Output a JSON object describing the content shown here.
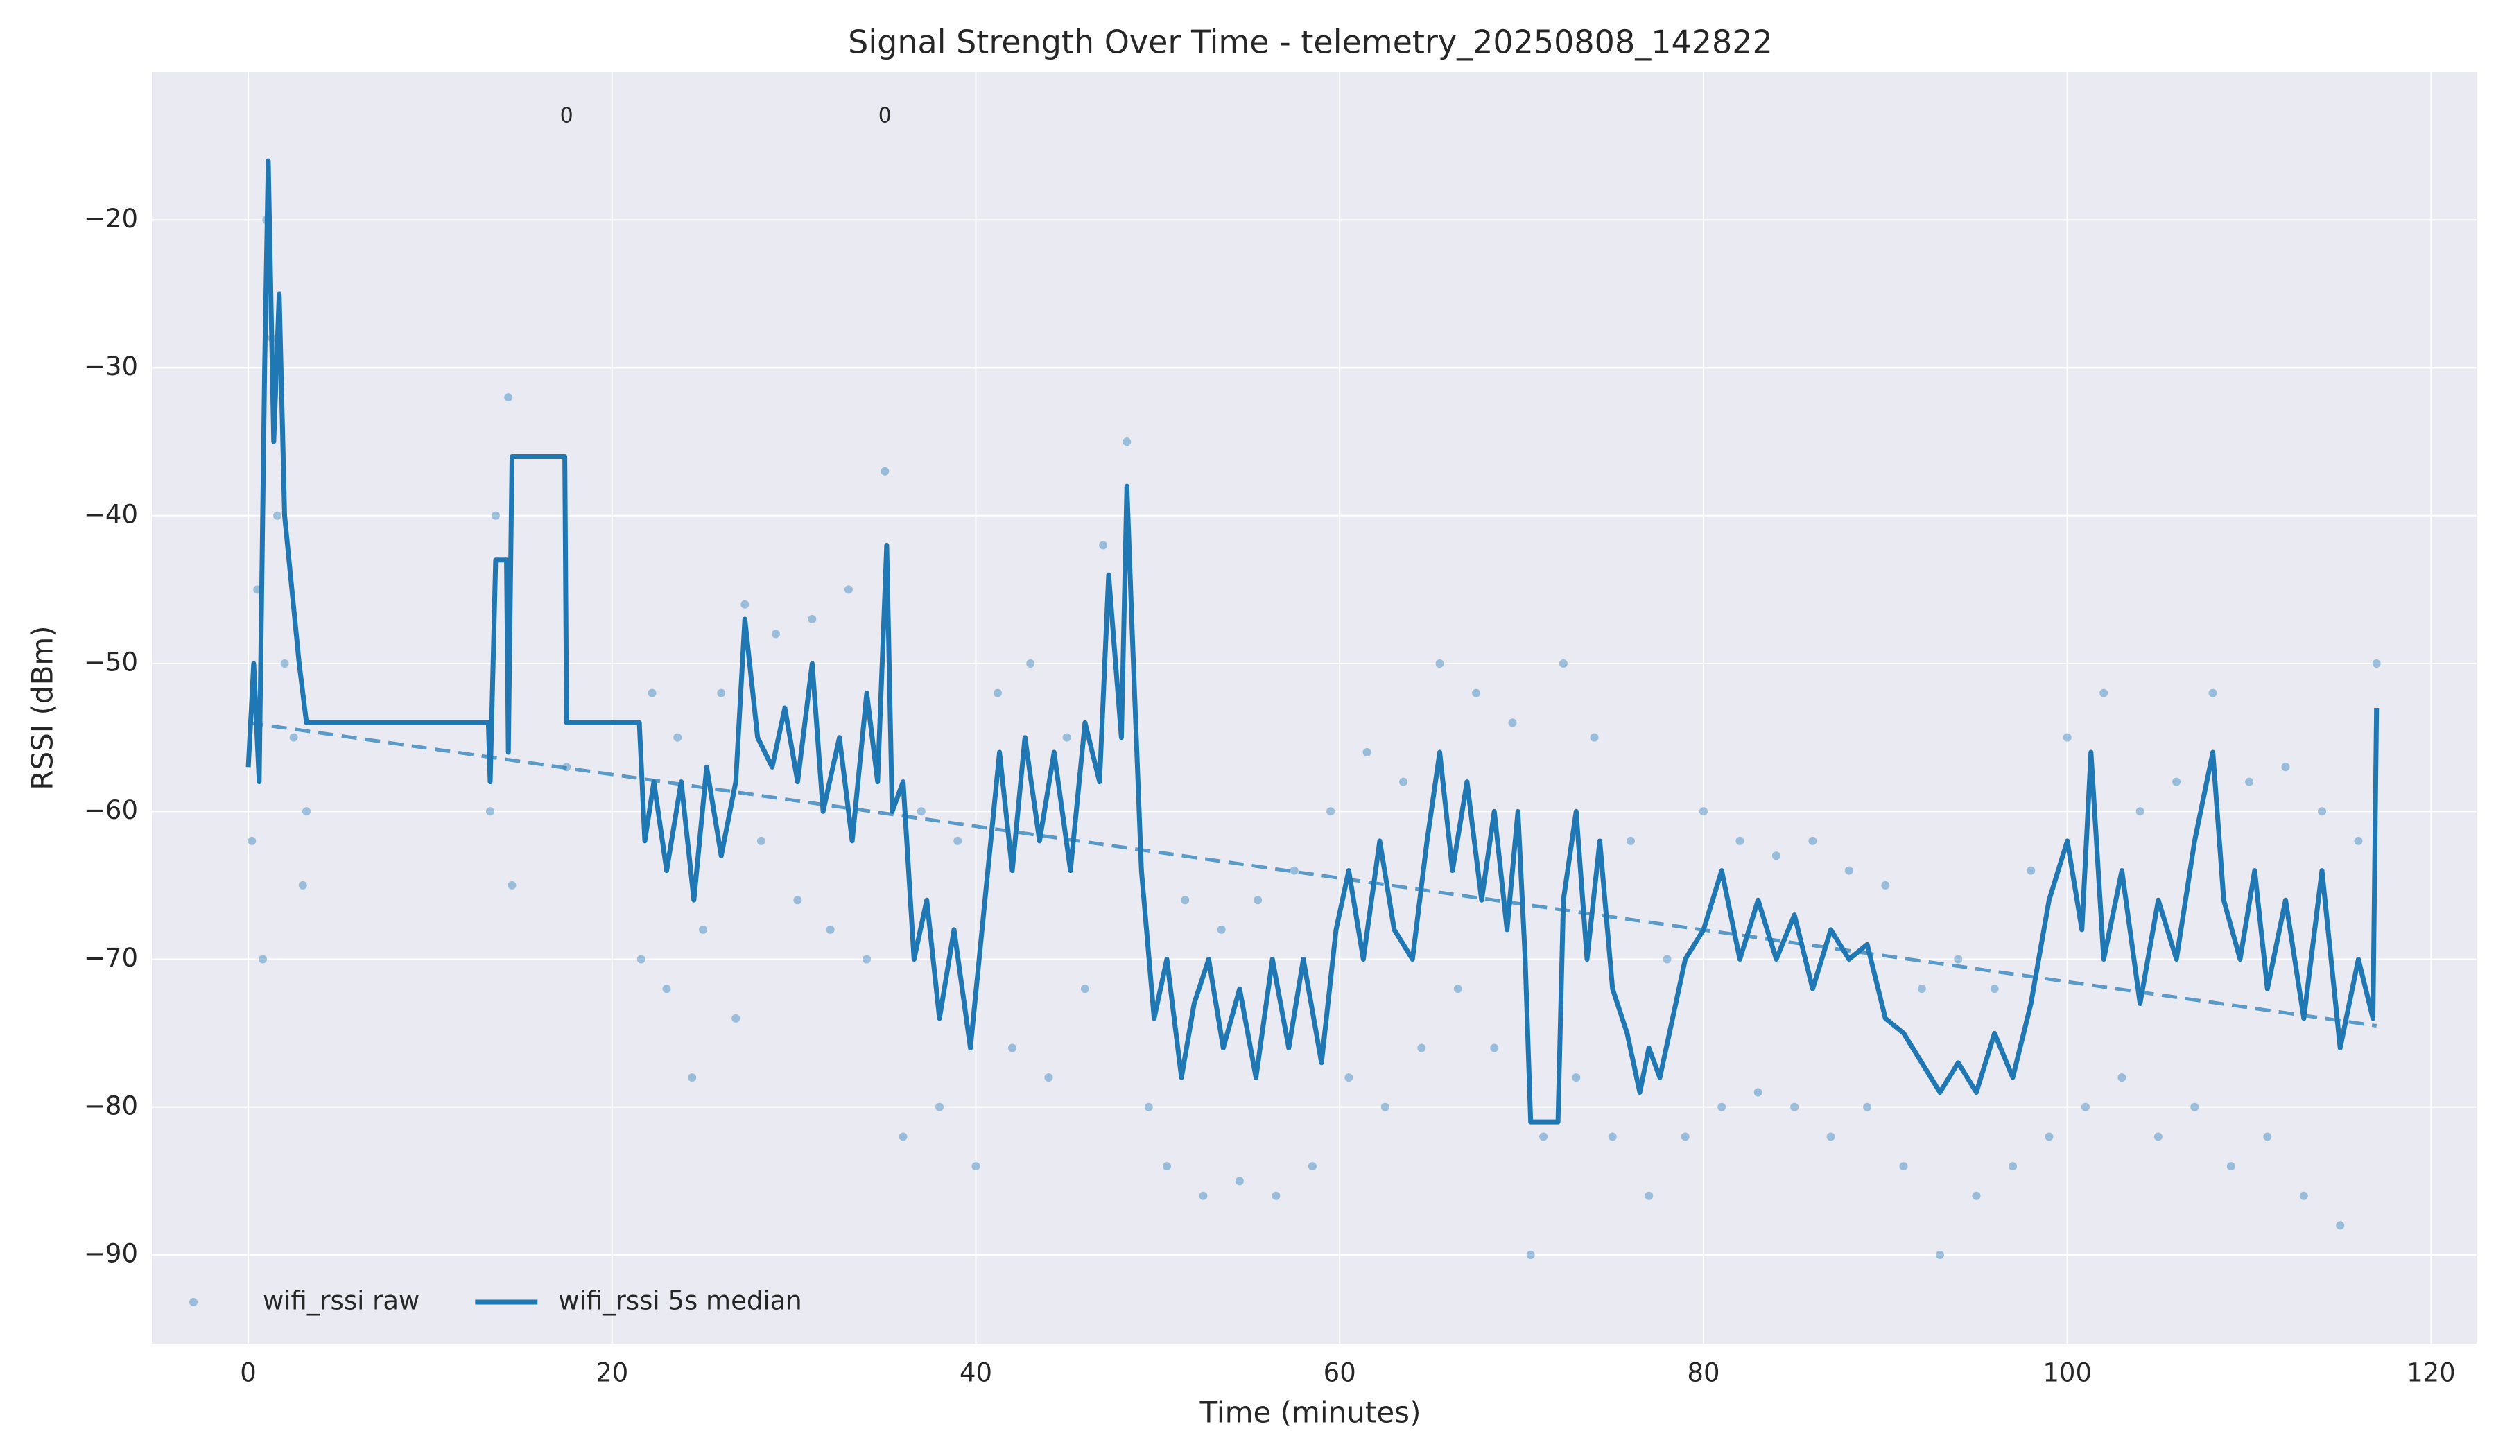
{
  "chart_data": {
    "type": "scatter-line",
    "title": "Signal Strength Over Time - telemetry_20250808_142822",
    "x_label": "Time (minutes)",
    "y_label": "RSSI (dBm)",
    "xlim": [
      -5.3,
      122.5
    ],
    "ylim": [
      -96,
      -10
    ],
    "xticks": [
      0,
      20,
      40,
      60,
      80,
      100,
      120
    ],
    "yticks": [
      {
        "value": -90,
        "label": "−90"
      },
      {
        "value": -80,
        "label": "−80"
      },
      {
        "value": -70,
        "label": "−70"
      },
      {
        "value": -60,
        "label": "−60"
      },
      {
        "value": -50,
        "label": "−50"
      },
      {
        "value": -40,
        "label": "−40"
      },
      {
        "value": -30,
        "label": "−30"
      },
      {
        "value": -20,
        "label": "−20"
      }
    ],
    "grid": true,
    "legend": "lower left",
    "series": [
      {
        "name": "wifi_rssi raw",
        "kind": "scatter",
        "color": "#1f77b4",
        "x": [
          0.2,
          0.5,
          0.8,
          1.0,
          1.3,
          1.6,
          2.0,
          2.5,
          3.0,
          3.2,
          13.3,
          13.6,
          14.3,
          14.5,
          17.5,
          21.6,
          22.2,
          23.0,
          23.6,
          24.4,
          25.0,
          26.0,
          26.8,
          27.3,
          28.2,
          29.0,
          30.2,
          31.0,
          32.0,
          33.0,
          34.0,
          35.0,
          36.0,
          37.0,
          38.0,
          39.0,
          40.0,
          41.2,
          42.0,
          43.0,
          44.0,
          45.0,
          46.0,
          47.0,
          48.3,
          49.5,
          50.5,
          51.5,
          52.5,
          53.5,
          54.5,
          55.5,
          56.5,
          57.5,
          58.5,
          59.5,
          60.5,
          61.5,
          62.5,
          63.5,
          64.5,
          65.5,
          66.5,
          67.5,
          68.5,
          69.5,
          70.5,
          71.2,
          72.3,
          73.0,
          74.0,
          75.0,
          76.0,
          77.0,
          78.0,
          79.0,
          80.0,
          81.0,
          82.0,
          83.0,
          84.0,
          85.0,
          86.0,
          87.0,
          88.0,
          89.0,
          90.0,
          91.0,
          92.0,
          93.0,
          94.0,
          95.0,
          96.0,
          97.0,
          98.0,
          99.0,
          100.0,
          101.0,
          102.0,
          103.0,
          104.0,
          105.0,
          106.0,
          107.0,
          108.0,
          109.0,
          110.0,
          111.0,
          112.0,
          113.0,
          114.0,
          115.0,
          116.0,
          117.0
        ],
        "values": [
          -62,
          -45,
          -70,
          -20,
          -28,
          -40,
          -50,
          -55,
          -65,
          -60,
          -60,
          -40,
          -32,
          -65,
          -57,
          -70,
          -52,
          -72,
          -55,
          -78,
          -68,
          -52,
          -74,
          -46,
          -62,
          -48,
          -66,
          -47,
          -68,
          -45,
          -70,
          -37,
          -82,
          -60,
          -80,
          -62,
          -84,
          -52,
          -76,
          -50,
          -78,
          -55,
          -72,
          -42,
          -35,
          -80,
          -84,
          -66,
          -86,
          -68,
          -85,
          -66,
          -86,
          -64,
          -84,
          -60,
          -78,
          -56,
          -80,
          -58,
          -76,
          -50,
          -72,
          -52,
          -76,
          -54,
          -90,
          -82,
          -50,
          -78,
          -55,
          -82,
          -62,
          -86,
          -70,
          -82,
          -60,
          -80,
          -62,
          -79,
          -63,
          -80,
          -62,
          -82,
          -64,
          -80,
          -65,
          -84,
          -72,
          -90,
          -70,
          -86,
          -72,
          -84,
          -64,
          -82,
          -55,
          -80,
          -52,
          -78,
          -60,
          -82,
          -58,
          -80,
          -52,
          -84,
          -58,
          -82,
          -57,
          -86,
          -60,
          -88,
          -62,
          -50
        ]
      },
      {
        "name": "wifi_rssi 5s median",
        "kind": "line",
        "color": "#1f77b4",
        "x": [
          0,
          0.3,
          0.6,
          0.9,
          1.1,
          1.4,
          1.7,
          2.0,
          2.4,
          2.8,
          3.2,
          13.2,
          13.3,
          13.6,
          14.2,
          14.3,
          14.5,
          17.4,
          17.5,
          21.5,
          21.8,
          22.3,
          23,
          23.8,
          24.5,
          25.2,
          26,
          26.8,
          27.3,
          28,
          28.8,
          29.5,
          30.2,
          31,
          31.6,
          32.5,
          33.2,
          34,
          34.6,
          35.1,
          35.4,
          36,
          36.6,
          37.3,
          38,
          38.8,
          39.7,
          40.5,
          41.3,
          42,
          42.7,
          43.5,
          44.3,
          45.2,
          46,
          46.8,
          47.3,
          48,
          48.3,
          48.6,
          49.1,
          49.8,
          50.5,
          51.3,
          52,
          52.8,
          53.6,
          54.5,
          55.4,
          56.3,
          57.2,
          58,
          59,
          59.8,
          60.5,
          61.3,
          62.2,
          63,
          64,
          64.8,
          65.5,
          66.2,
          67,
          67.8,
          68.5,
          69.2,
          69.8,
          70.2,
          70.5,
          72,
          72.3,
          73,
          73.6,
          74.3,
          75,
          75.8,
          76.5,
          77,
          77.6,
          78.3,
          79,
          80,
          81,
          82,
          83,
          84,
          85,
          86,
          87,
          88,
          89,
          90,
          91,
          92,
          93,
          94,
          95,
          96,
          97,
          98,
          99,
          100,
          100.8,
          101.3,
          102,
          103,
          104,
          105,
          106,
          107,
          108,
          108.6,
          109.5,
          110.3,
          111,
          112,
          113,
          114,
          115,
          116,
          116.8,
          117
        ],
        "values": [
          -57,
          -50,
          -58,
          -30,
          -16,
          -35,
          -25,
          -40,
          -45,
          -50,
          -54,
          -54,
          -58,
          -43,
          -43,
          -56,
          -36,
          -36,
          -54,
          -54,
          -62,
          -58,
          -64,
          -58,
          -66,
          -57,
          -63,
          -58,
          -47,
          -55,
          -57,
          -53,
          -58,
          -50,
          -60,
          -55,
          -62,
          -52,
          -58,
          -42,
          -60,
          -58,
          -70,
          -66,
          -74,
          -68,
          -76,
          -66,
          -56,
          -64,
          -55,
          -62,
          -56,
          -64,
          -54,
          -58,
          -44,
          -55,
          -38,
          -48,
          -64,
          -74,
          -70,
          -78,
          -73,
          -70,
          -76,
          -72,
          -78,
          -70,
          -76,
          -70,
          -77,
          -68,
          -64,
          -70,
          -62,
          -68,
          -70,
          -62,
          -56,
          -64,
          -58,
          -66,
          -60,
          -68,
          -60,
          -70,
          -81,
          -81,
          -66,
          -60,
          -70,
          -62,
          -72,
          -75,
          -79,
          -76,
          -78,
          -74,
          -70,
          -68,
          -64,
          -70,
          -66,
          -70,
          -67,
          -72,
          -68,
          -70,
          -69,
          -74,
          -75,
          -77,
          -79,
          -77,
          -79,
          -75,
          -78,
          -73,
          -66,
          -62,
          -68,
          -56,
          -70,
          -64,
          -73,
          -66,
          -70,
          -62,
          -56,
          -66,
          -70,
          -64,
          -72,
          -66,
          -74,
          -64,
          -76,
          -70,
          -74,
          -53
        ]
      }
    ],
    "trend": {
      "color": "#5a9ac8",
      "x": [
        0,
        117
      ],
      "values": [
        -54,
        -74.5
      ]
    },
    "annotations": [
      {
        "x": 17.5,
        "y": -13,
        "text": "0"
      },
      {
        "x": 35,
        "y": -13,
        "text": "0"
      }
    ]
  }
}
